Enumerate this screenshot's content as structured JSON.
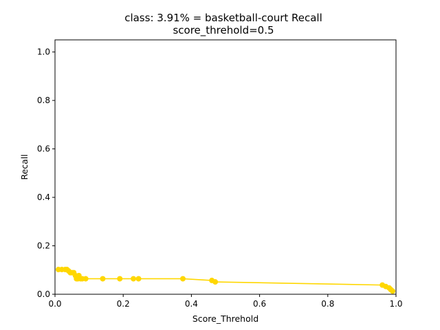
{
  "chart_data": {
    "type": "line",
    "title": "class: 3.91% = basketball-court Recall",
    "subtitle": "score_threhold=0.5",
    "xlabel": "Score_Threhold",
    "ylabel": "Recall",
    "xlim": [
      0.0,
      1.0
    ],
    "ylim": [
      0.0,
      1.05
    ],
    "xticks": [
      "0.0",
      "0.2",
      "0.4",
      "0.6",
      "0.8",
      "1.0"
    ],
    "yticks": [
      "0.0",
      "0.2",
      "0.4",
      "0.6",
      "0.8",
      "1.0"
    ],
    "grid": false,
    "series": [
      {
        "color": "#ffd700",
        "marker": "circle",
        "x": [
          0.01,
          0.02,
          0.03,
          0.035,
          0.04,
          0.045,
          0.05,
          0.055,
          0.06,
          0.063,
          0.067,
          0.07,
          0.075,
          0.08,
          0.09,
          0.14,
          0.19,
          0.23,
          0.245,
          0.375,
          0.46,
          0.47,
          0.96,
          0.97,
          0.98,
          0.985,
          0.99
        ],
        "y": [
          0.102,
          0.102,
          0.102,
          0.102,
          0.096,
          0.089,
          0.089,
          0.089,
          0.077,
          0.064,
          0.064,
          0.077,
          0.064,
          0.064,
          0.064,
          0.064,
          0.064,
          0.064,
          0.064,
          0.064,
          0.057,
          0.051,
          0.038,
          0.032,
          0.026,
          0.019,
          0.013
        ]
      }
    ]
  }
}
